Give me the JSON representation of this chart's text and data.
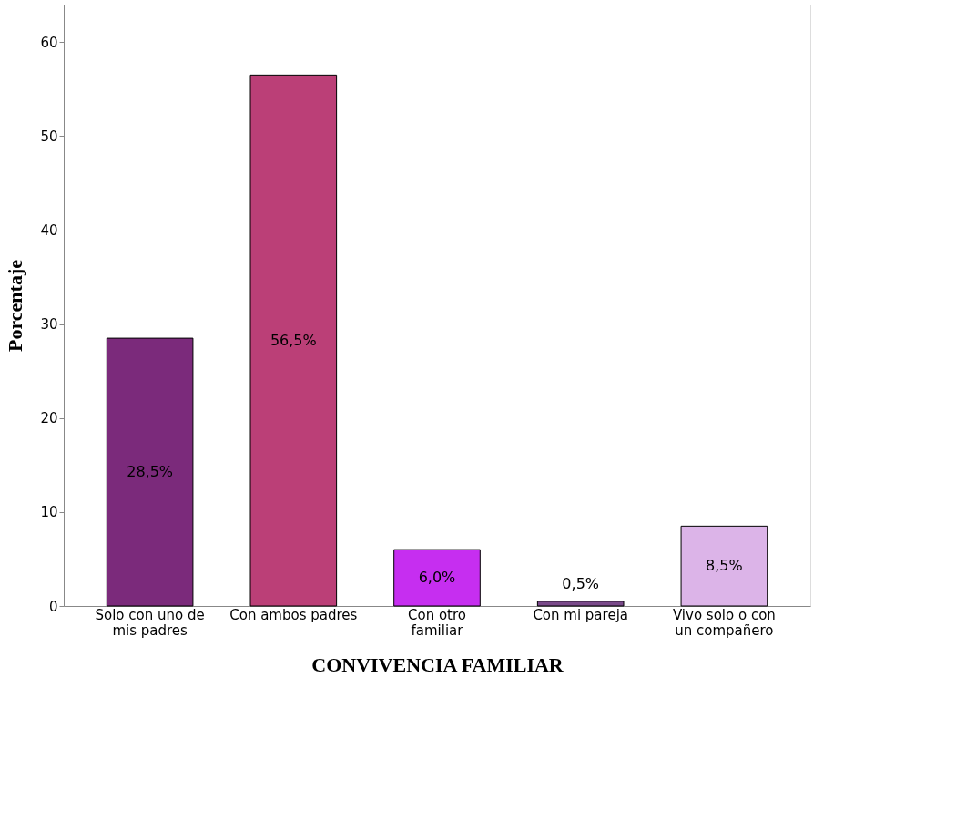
{
  "chart_data": {
    "type": "bar",
    "xlabel": "CONVIVENCIA FAMILIAR",
    "ylabel": "Porcentaje",
    "categories": [
      "Solo con uno de mis padres",
      "Con ambos padres",
      "Con otro familiar",
      "Con mi pareja",
      "Vivo solo  o con un compañero"
    ],
    "values": [
      28.5,
      56.5,
      6.0,
      0.5,
      8.5
    ],
    "colors": [
      "#7b2a7b",
      "#bb3f77",
      "#c62ef0",
      "#7a4a8a",
      "#dcb4e8"
    ],
    "value_labels": [
      "28,5%",
      "56,5%",
      "6,0%",
      "0,5%",
      "8,5%"
    ],
    "ylim": [
      0,
      64
    ],
    "yticks": [
      0,
      10,
      20,
      30,
      40,
      50,
      60
    ],
    "grid": false,
    "legend": false
  }
}
